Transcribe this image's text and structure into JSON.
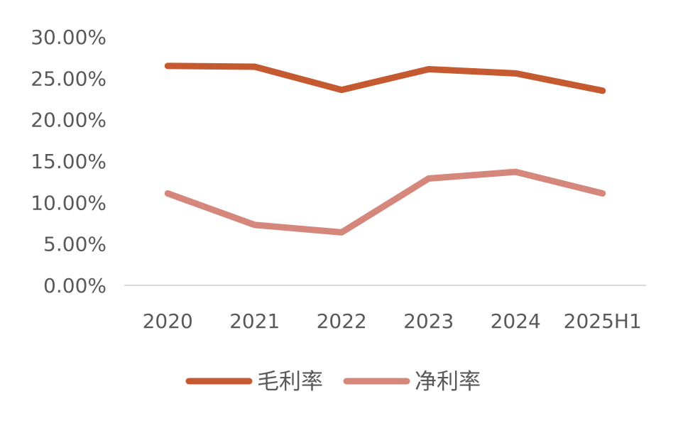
{
  "chart_data": {
    "type": "line",
    "categories": [
      "2020",
      "2021",
      "2022",
      "2023",
      "2024",
      "2025H1"
    ],
    "series": [
      {
        "name": "毛利率",
        "color": "#C55A30",
        "values": [
          26.5,
          26.4,
          23.6,
          26.1,
          25.6,
          23.5
        ]
      },
      {
        "name": "净利率",
        "color": "#D4877A",
        "values": [
          11.1,
          7.3,
          6.4,
          12.9,
          13.7,
          11.1
        ]
      }
    ],
    "y_ticks": [
      "0.00%",
      "5.00%",
      "10.00%",
      "15.00%",
      "20.00%",
      "25.00%",
      "30.00%"
    ],
    "ylim": [
      0,
      30
    ],
    "grid": false,
    "legend_position": "bottom"
  }
}
